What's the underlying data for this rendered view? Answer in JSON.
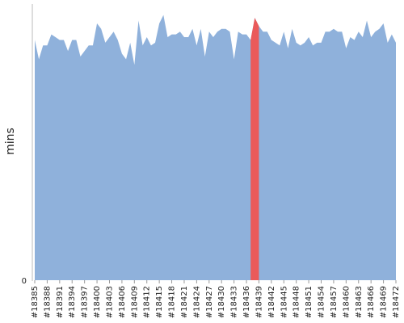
{
  "chart_data": {
    "type": "area",
    "y_label": "mins",
    "categories": [
      "#18385",
      null,
      null,
      "#18388",
      null,
      null,
      "#18391",
      null,
      null,
      "#18394",
      null,
      null,
      "#18397",
      null,
      null,
      "#18400",
      null,
      null,
      "#18403",
      null,
      null,
      "#18406",
      null,
      null,
      "#18409",
      null,
      null,
      "#18412",
      null,
      null,
      "#18415",
      null,
      null,
      "#18418",
      null,
      null,
      "#18421",
      null,
      null,
      "#18424",
      null,
      null,
      "#18427",
      null,
      null,
      "#18430",
      null,
      null,
      "#18433",
      null,
      null,
      "#18436",
      null,
      null,
      "#18439",
      null,
      null,
      "#18442",
      null,
      null,
      "#18445",
      null,
      null,
      "#18448",
      null,
      null,
      "#18451",
      null,
      null,
      "#18454",
      null,
      null,
      "#18457",
      null,
      null,
      "#18460",
      null,
      null,
      "#18463",
      null,
      null,
      "#18466",
      null,
      null,
      "#18469",
      null,
      null,
      "#18472"
    ],
    "series": [
      {
        "color": "#8fb1db",
        "values": [
          87,
          80,
          85,
          85,
          89,
          88,
          87,
          87,
          83,
          87,
          87,
          81,
          83,
          85,
          85,
          93,
          91,
          86,
          88,
          90,
          87,
          82,
          80,
          86,
          78,
          94,
          85,
          88,
          85,
          86,
          93,
          96,
          88,
          89,
          89,
          90,
          88,
          88,
          91,
          85,
          91,
          81,
          90,
          88,
          90,
          91,
          91,
          90,
          80,
          90,
          89,
          89,
          87,
          95,
          92,
          90,
          90,
          87,
          86,
          85,
          90,
          84,
          91,
          86,
          85,
          86,
          88,
          85,
          86,
          86,
          90,
          90,
          91,
          90,
          90,
          84,
          88,
          87,
          90,
          88,
          94,
          88,
          90,
          91,
          93,
          86,
          89,
          86
        ]
      }
    ],
    "highlight": {
      "from": 52,
      "to": 54,
      "color": "#ea5a5a"
    },
    "ylim": [
      0,
      100
    ],
    "yticks": [
      0
    ],
    "grid": false
  }
}
